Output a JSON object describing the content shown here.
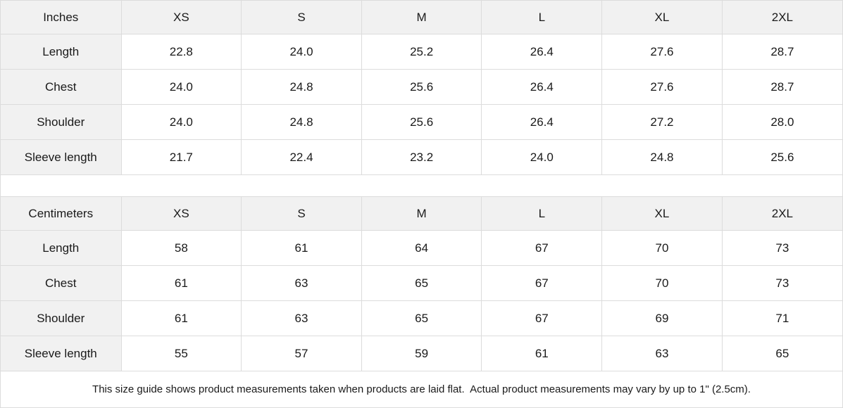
{
  "colors": {
    "header_bg": "#f1f1f1",
    "grid_border": "#dcdcdc",
    "text": "#1a1a1a",
    "background": "#ffffff"
  },
  "tables": [
    {
      "unit_label": "Inches",
      "columns": [
        "XS",
        "S",
        "M",
        "L",
        "XL",
        "2XL"
      ],
      "rows": [
        {
          "label": "Length",
          "values": [
            "22.8",
            "24.0",
            "25.2",
            "26.4",
            "27.6",
            "28.7"
          ]
        },
        {
          "label": "Chest",
          "values": [
            "24.0",
            "24.8",
            "25.6",
            "26.4",
            "27.6",
            "28.7"
          ]
        },
        {
          "label": "Shoulder",
          "values": [
            "24.0",
            "24.8",
            "25.6",
            "26.4",
            "27.2",
            "28.0"
          ]
        },
        {
          "label": "Sleeve length",
          "values": [
            "21.7",
            "22.4",
            "23.2",
            "24.0",
            "24.8",
            "25.6"
          ]
        }
      ]
    },
    {
      "unit_label": "Centimeters",
      "columns": [
        "XS",
        "S",
        "M",
        "L",
        "XL",
        "2XL"
      ],
      "rows": [
        {
          "label": "Length",
          "values": [
            "58",
            "61",
            "64",
            "67",
            "70",
            "73"
          ]
        },
        {
          "label": "Chest",
          "values": [
            "61",
            "63",
            "65",
            "67",
            "70",
            "73"
          ]
        },
        {
          "label": "Shoulder",
          "values": [
            "61",
            "63",
            "65",
            "67",
            "69",
            "71"
          ]
        },
        {
          "label": "Sleeve length",
          "values": [
            "55",
            "57",
            "59",
            "61",
            "63",
            "65"
          ]
        }
      ]
    }
  ],
  "footer": {
    "note": "This size guide shows product measurements taken when products are laid flat.  Actual product measurements may vary by up to 1\" (2.5cm)."
  }
}
